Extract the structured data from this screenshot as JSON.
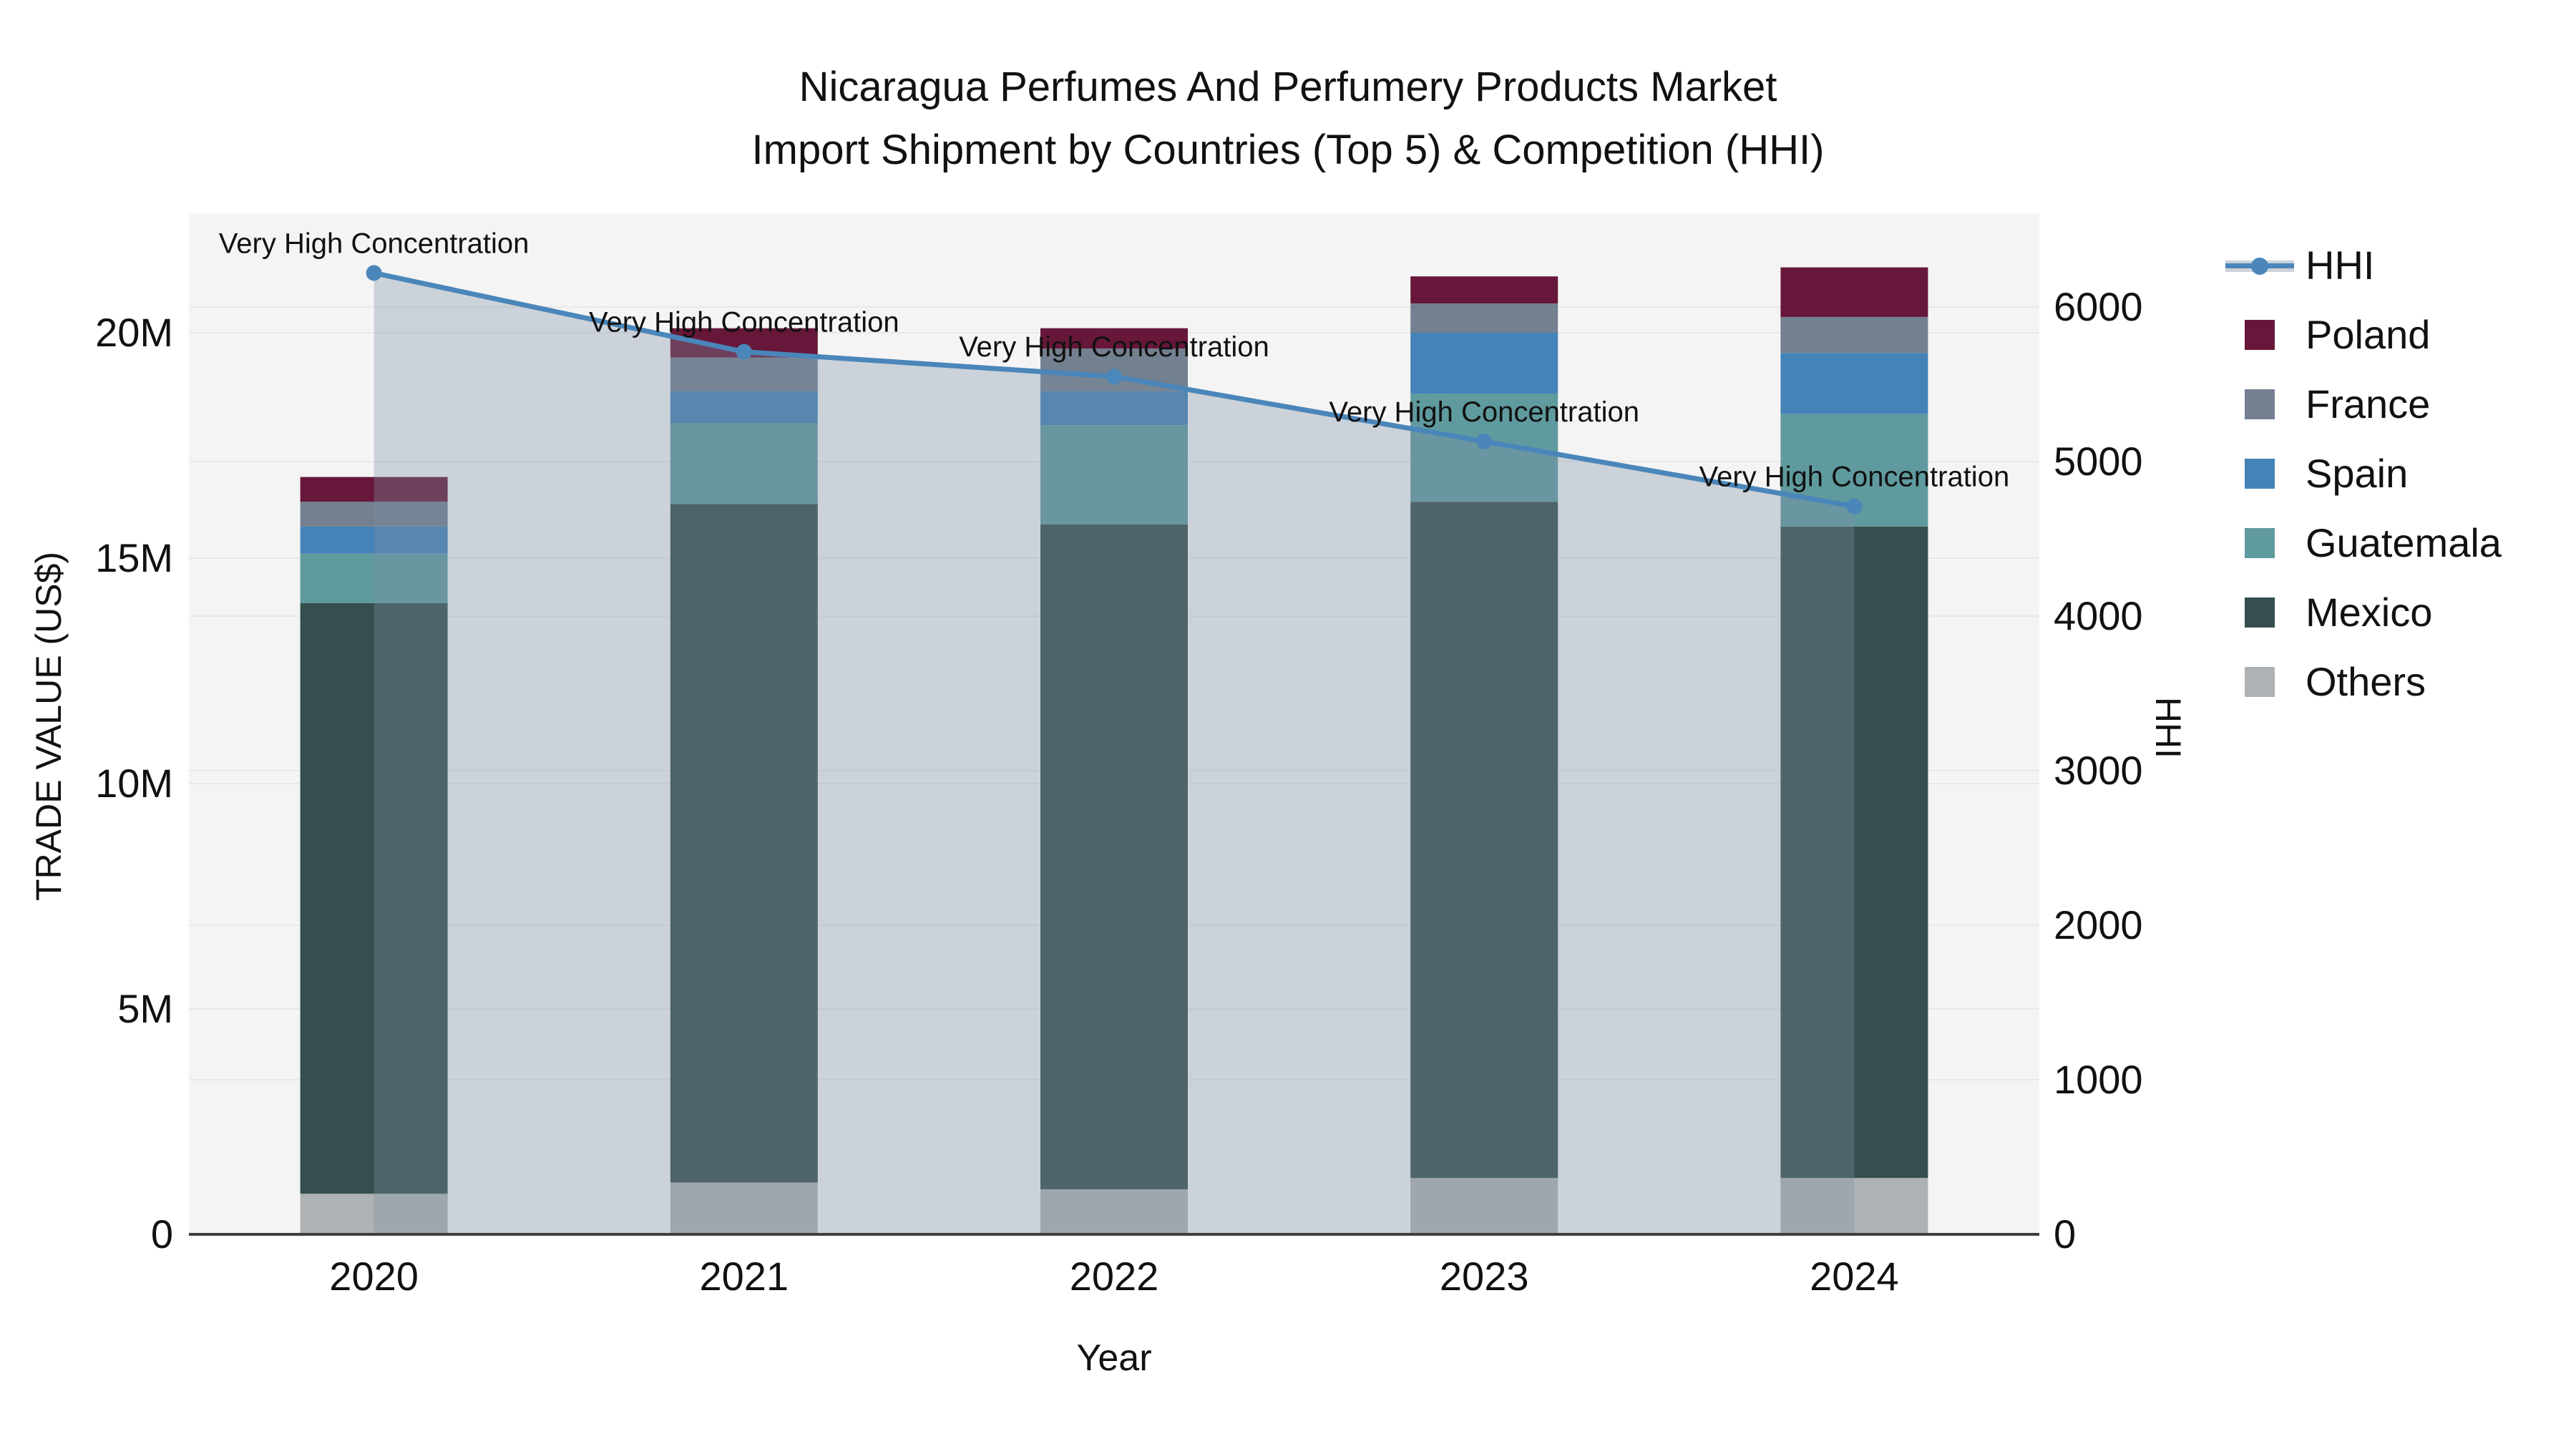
{
  "title": {
    "line1": "Nicaragua Perfumes And Perfumery Products Market",
    "line2": "Import Shipment by Countries (Top 5) & Competition (HHI)"
  },
  "axes": {
    "x_title": "Year",
    "y_left_title": "TRADE VALUE (US$)",
    "y_right_title": "HHI",
    "y_left_tick_labels": [
      "0",
      "5M",
      "10M",
      "15M",
      "20M"
    ],
    "y_left_tick_values_musd": [
      0,
      5,
      10,
      15,
      20
    ],
    "y_right_tick_labels": [
      "0",
      "1000",
      "2000",
      "3000",
      "4000",
      "5000",
      "6000"
    ],
    "y_right_tick_values": [
      0,
      1000,
      2000,
      3000,
      4000,
      5000,
      6000
    ]
  },
  "legend": [
    {
      "label": "HHI",
      "swatch": "line",
      "color": "#4a86ba"
    },
    {
      "label": "Poland",
      "swatch": "square",
      "color": "#67173a"
    },
    {
      "label": "France",
      "swatch": "square",
      "color": "#73808f"
    },
    {
      "label": "Spain",
      "swatch": "square",
      "color": "#4483b7"
    },
    {
      "label": "Guatemala",
      "swatch": "square",
      "color": "#5f9a9e"
    },
    {
      "label": "Mexico",
      "swatch": "square",
      "color": "#344f4d"
    },
    {
      "label": "Others",
      "swatch": "square",
      "color": "#afb2b4"
    }
  ],
  "chart_data": {
    "type": "bar",
    "subtype": "stacked-bars-with-line",
    "categories": [
      "2020",
      "2021",
      "2022",
      "2023",
      "2024"
    ],
    "stack_order_bottom_to_top": [
      "Others",
      "Mexico",
      "Guatemala",
      "Spain",
      "France",
      "Poland"
    ],
    "series": [
      {
        "name": "Poland",
        "type": "bar",
        "color": "#67173a",
        "values_musd": [
          0.55,
          0.65,
          0.45,
          0.6,
          1.1
        ]
      },
      {
        "name": "France",
        "type": "bar",
        "color": "#73808f",
        "values_musd": [
          0.55,
          0.75,
          0.95,
          0.65,
          0.8
        ]
      },
      {
        "name": "Spain",
        "type": "bar",
        "color": "#4483b7",
        "values_musd": [
          0.6,
          0.7,
          0.75,
          1.35,
          1.35
        ]
      },
      {
        "name": "Guatemala",
        "type": "bar",
        "color": "#5f9a9e",
        "values_musd": [
          1.1,
          1.8,
          2.2,
          2.4,
          2.5
        ]
      },
      {
        "name": "Mexico",
        "type": "bar",
        "color": "#344f4d",
        "values_musd": [
          13.1,
          15.05,
          14.75,
          15.0,
          14.45
        ]
      },
      {
        "name": "Others",
        "type": "bar",
        "color": "#afb2b4",
        "values_musd": [
          0.9,
          1.15,
          1.0,
          1.25,
          1.25
        ]
      }
    ],
    "bar_totals_musd": [
      16.8,
      20.1,
      20.1,
      21.25,
      21.45
    ],
    "line_series": {
      "name": "HHI",
      "color": "#4a86ba",
      "fill_color": "rgba(125,144,165,0.34)",
      "values": [
        6220,
        5710,
        5550,
        5130,
        4710
      ]
    },
    "annotations": [
      {
        "x": "2020",
        "text": "Very High Concentration"
      },
      {
        "x": "2021",
        "text": "Very High Concentration"
      },
      {
        "x": "2022",
        "text": "Very High Concentration"
      },
      {
        "x": "2023",
        "text": "Very High Concentration"
      },
      {
        "x": "2024",
        "text": "Very High Concentration"
      }
    ],
    "ylim_left_musd": [
      0,
      22.65
    ],
    "ylim_right": [
      0,
      6600
    ],
    "grid": true,
    "legend_position": "right",
    "plot_bgcolor": "#f4f4f4",
    "grid_color": "#e8e8e8",
    "axisline_color": "#3f3f3f",
    "xlabel": "Year",
    "ylabel_left": "TRADE VALUE (US$)",
    "ylabel_right": "HHI"
  }
}
